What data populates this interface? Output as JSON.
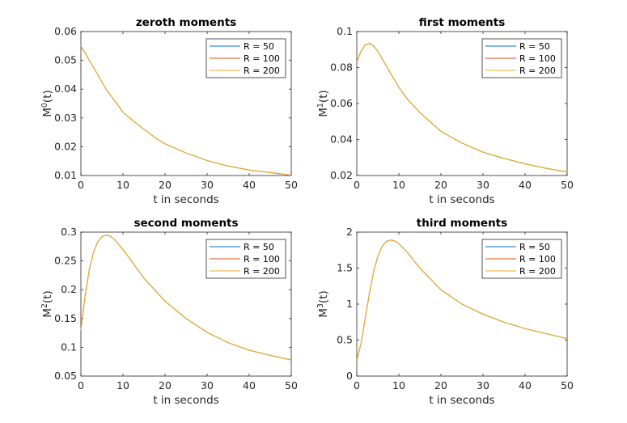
{
  "chart_data": [
    {
      "type": "line",
      "title": "zeroth moments",
      "xlabel": "t in seconds",
      "ylabel": "M",
      "ylabel_sup": "0",
      "ylabel_suffix": "(t)",
      "xlim": [
        0,
        50
      ],
      "ylim": [
        0.01,
        0.06
      ],
      "xticks": [
        0,
        10,
        20,
        30,
        40,
        50
      ],
      "yticks": [
        0.01,
        0.02,
        0.03,
        0.04,
        0.05,
        0.06
      ],
      "ytick_labels": [
        "0.01",
        "0.02",
        "0.03",
        "0.04",
        "0.05",
        "0.06"
      ],
      "legend_position": "top-right",
      "x": [
        0,
        2,
        4,
        6,
        8,
        10,
        12,
        15,
        18,
        20,
        25,
        30,
        35,
        40,
        45,
        50
      ],
      "series": [
        {
          "name": "R = 50",
          "color": "#0072BD",
          "values": [
            0.055,
            0.05,
            0.045,
            0.04,
            0.036,
            0.032,
            0.0295,
            0.026,
            0.0228,
            0.021,
            0.0178,
            0.0152,
            0.0133,
            0.0119,
            0.011,
            0.0101
          ]
        },
        {
          "name": "R = 100",
          "color": "#D95319",
          "values": [
            0.055,
            0.05,
            0.045,
            0.04,
            0.036,
            0.032,
            0.0295,
            0.026,
            0.0228,
            0.021,
            0.0178,
            0.0152,
            0.0133,
            0.0119,
            0.011,
            0.0101
          ]
        },
        {
          "name": "R = 200",
          "color": "#EDB120",
          "values": [
            0.055,
            0.05,
            0.045,
            0.04,
            0.036,
            0.032,
            0.0295,
            0.026,
            0.0228,
            0.021,
            0.0178,
            0.0152,
            0.0133,
            0.0119,
            0.011,
            0.0101
          ]
        }
      ]
    },
    {
      "type": "line",
      "title": "first moments",
      "xlabel": "t in seconds",
      "ylabel": "M",
      "ylabel_sup": "1",
      "ylabel_suffix": "(t)",
      "xlim": [
        0,
        50
      ],
      "ylim": [
        0.02,
        0.1
      ],
      "xticks": [
        0,
        10,
        20,
        30,
        40,
        50
      ],
      "yticks": [
        0.02,
        0.04,
        0.06,
        0.08,
        0.1
      ],
      "ytick_labels": [
        "0.02",
        "0.04",
        "0.06",
        "0.08",
        "0.1"
      ],
      "legend_position": "top-right",
      "x": [
        0,
        1,
        2,
        3,
        4,
        5,
        6,
        8,
        10,
        12,
        15,
        20,
        25,
        30,
        35,
        40,
        45,
        50
      ],
      "series": [
        {
          "name": "R = 50",
          "color": "#0072BD",
          "values": [
            0.083,
            0.089,
            0.0925,
            0.0935,
            0.092,
            0.089,
            0.085,
            0.077,
            0.069,
            0.0625,
            0.055,
            0.0445,
            0.038,
            0.033,
            0.0295,
            0.0265,
            0.024,
            0.022
          ]
        },
        {
          "name": "R = 100",
          "color": "#D95319",
          "values": [
            0.083,
            0.089,
            0.0925,
            0.0935,
            0.092,
            0.089,
            0.085,
            0.077,
            0.069,
            0.0625,
            0.055,
            0.0445,
            0.038,
            0.033,
            0.0295,
            0.0265,
            0.024,
            0.022
          ]
        },
        {
          "name": "R = 200",
          "color": "#EDB120",
          "values": [
            0.083,
            0.089,
            0.0925,
            0.0935,
            0.092,
            0.089,
            0.085,
            0.077,
            0.069,
            0.0625,
            0.055,
            0.0445,
            0.038,
            0.033,
            0.0295,
            0.0265,
            0.024,
            0.022
          ]
        }
      ]
    },
    {
      "type": "line",
      "title": "second moments",
      "xlabel": "t in seconds",
      "ylabel": "M",
      "ylabel_sup": "2",
      "ylabel_suffix": "(t)",
      "xlim": [
        0,
        50
      ],
      "ylim": [
        0.05,
        0.3
      ],
      "xticks": [
        0,
        10,
        20,
        30,
        40,
        50
      ],
      "yticks": [
        0.05,
        0.1,
        0.15,
        0.2,
        0.25,
        0.3
      ],
      "ytick_labels": [
        "0.05",
        "0.1",
        "0.15",
        "0.2",
        "0.25",
        "0.3"
      ],
      "legend_position": "top-right",
      "x": [
        0,
        1,
        2,
        3,
        4,
        5,
        6,
        7,
        8,
        10,
        12,
        15,
        20,
        25,
        30,
        35,
        40,
        45,
        50
      ],
      "series": [
        {
          "name": "R = 50",
          "color": "#0072BD",
          "values": [
            0.13,
            0.19,
            0.235,
            0.265,
            0.283,
            0.292,
            0.295,
            0.293,
            0.287,
            0.27,
            0.25,
            0.22,
            0.18,
            0.15,
            0.126,
            0.108,
            0.095,
            0.086,
            0.078
          ]
        },
        {
          "name": "R = 100",
          "color": "#D95319",
          "values": [
            0.13,
            0.19,
            0.235,
            0.265,
            0.283,
            0.292,
            0.295,
            0.293,
            0.287,
            0.27,
            0.25,
            0.22,
            0.18,
            0.15,
            0.126,
            0.108,
            0.095,
            0.086,
            0.078
          ]
        },
        {
          "name": "R = 200",
          "color": "#EDB120",
          "values": [
            0.13,
            0.19,
            0.235,
            0.265,
            0.283,
            0.292,
            0.295,
            0.293,
            0.287,
            0.27,
            0.25,
            0.22,
            0.18,
            0.15,
            0.126,
            0.108,
            0.095,
            0.086,
            0.078
          ]
        }
      ]
    },
    {
      "type": "line",
      "title": "third moments",
      "xlabel": "t in seconds",
      "ylabel": "M",
      "ylabel_sup": "3",
      "ylabel_suffix": "(t)",
      "xlim": [
        0,
        50
      ],
      "ylim": [
        0,
        2
      ],
      "xticks": [
        0,
        10,
        20,
        30,
        40,
        50
      ],
      "yticks": [
        0,
        0.5,
        1,
        1.5,
        2
      ],
      "ytick_labels": [
        "0",
        "0.5",
        "1",
        "1.5",
        "2"
      ],
      "legend_position": "top-right",
      "x": [
        0,
        1,
        2,
        3,
        4,
        5,
        6,
        7,
        8,
        9,
        10,
        12,
        15,
        20,
        25,
        30,
        35,
        40,
        45,
        50
      ],
      "series": [
        {
          "name": "R = 50",
          "color": "#0072BD",
          "values": [
            0.22,
            0.45,
            0.8,
            1.15,
            1.45,
            1.66,
            1.8,
            1.87,
            1.89,
            1.88,
            1.84,
            1.72,
            1.5,
            1.2,
            1.0,
            0.86,
            0.75,
            0.66,
            0.59,
            0.52
          ]
        },
        {
          "name": "R = 100",
          "color": "#D95319",
          "values": [
            0.22,
            0.45,
            0.8,
            1.15,
            1.45,
            1.66,
            1.8,
            1.87,
            1.89,
            1.88,
            1.84,
            1.72,
            1.5,
            1.2,
            1.0,
            0.86,
            0.75,
            0.66,
            0.59,
            0.52
          ]
        },
        {
          "name": "R = 200",
          "color": "#EDB120",
          "values": [
            0.22,
            0.45,
            0.8,
            1.15,
            1.45,
            1.66,
            1.8,
            1.87,
            1.89,
            1.88,
            1.84,
            1.72,
            1.5,
            1.2,
            1.0,
            0.86,
            0.75,
            0.66,
            0.59,
            0.52
          ]
        }
      ]
    }
  ]
}
